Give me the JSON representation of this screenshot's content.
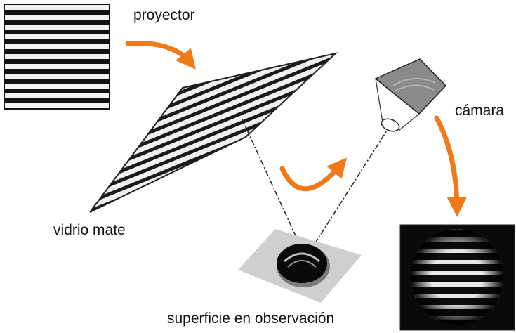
{
  "labels": {
    "projector": "proyector",
    "ground_glass": "vidrio mate",
    "camera": "cámara",
    "surface": "superficie en observación"
  },
  "colors": {
    "arrow": "#f07a1a",
    "stripe_dark": "#111111",
    "stripe_light": "#f2f2f2",
    "plate": "#cfcfcf",
    "camera_body": "#8a8a8a",
    "output_bg": "#0a0a0a"
  },
  "icons": {
    "arrows": [
      "curved-arrow-icon",
      "curved-arrow-icon",
      "curved-arrow-icon"
    ]
  }
}
